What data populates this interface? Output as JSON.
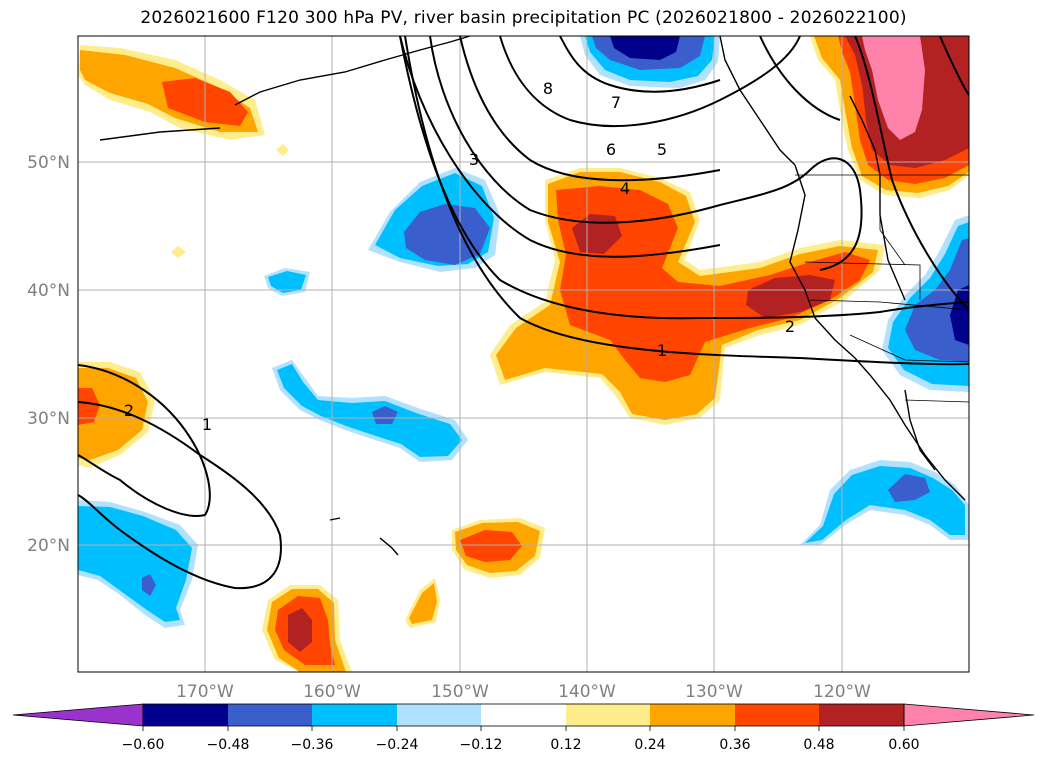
{
  "title": "2026021600 F120 300 hPa PV, river basin precipitation PC (2026021800 - 2026022100)",
  "map": {
    "lat_labels": [
      "50°N",
      "40°N",
      "30°N",
      "20°N"
    ],
    "lon_labels": [
      "170°W",
      "160°W",
      "150°W",
      "140°W",
      "130°W",
      "120°W"
    ],
    "contour_labels": [
      "8",
      "7",
      "6",
      "5",
      "4",
      "3",
      "2",
      "1",
      "2",
      "1"
    ]
  },
  "colorbar": {
    "ticks": [
      "−0.60",
      "−0.48",
      "−0.36",
      "−0.24",
      "−0.12",
      "0.12",
      "0.24",
      "0.36",
      "0.48",
      "0.60"
    ],
    "colors": [
      "#9a32cd",
      "#00008b",
      "#3a5fcd",
      "#00bfff",
      "#b0e2ff",
      "#ffffff",
      "#ffec8b",
      "#ffa500",
      "#ff4500",
      "#b22222",
      "#ff82ab"
    ]
  },
  "colors": {
    "neg_purple": "#9a32cd",
    "neg_navy": "#00008b",
    "neg_royal": "#3a5fcd",
    "neg_sky": "#00bfff",
    "neg_light": "#b0e2ff",
    "pos_yellow": "#ffec8b",
    "pos_orange": "#ffa500",
    "pos_redorange": "#ff4500",
    "pos_firebrick": "#b22222",
    "pos_pink": "#ff82ab",
    "grid": "#b0b0b0",
    "axis_label": "#808080"
  }
}
